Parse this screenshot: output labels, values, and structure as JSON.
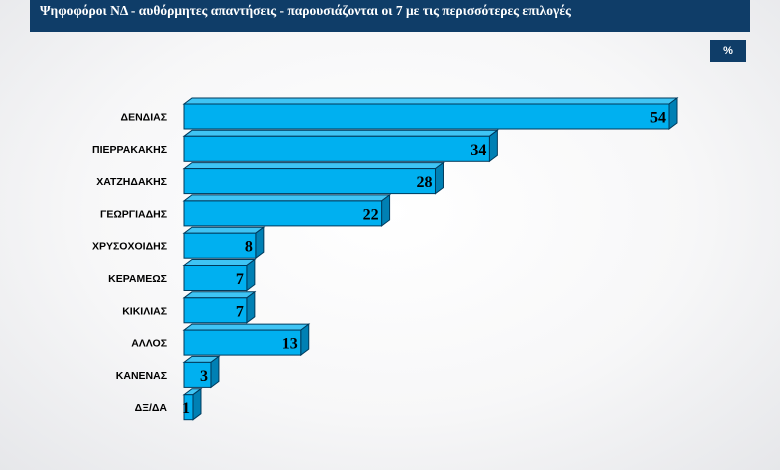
{
  "header": {
    "title": "Ψηφοφόροι ΝΔ - αυθόρμητες απαντήσεις - παρουσιάζονται οι 7 με τις περισσότερες επιλογές",
    "unit": "%"
  },
  "colors": {
    "header_bg": "#0f3d68",
    "bar_front": "#00b0f0",
    "bar_top": "#3fc4f4",
    "bar_side": "#0080b4",
    "bar_edge": "#003a5c"
  },
  "chart_data": {
    "type": "bar",
    "orientation": "horizontal",
    "title": "Ψηφοφόροι ΝΔ - αυθόρμητες απαντήσεις - παρουσιάζονται οι 7 με τις περισσότερες επιλογές",
    "unit": "%",
    "categories": [
      "ΔΕΝΔΙΑΣ",
      "ΠΙΕΡΡΑΚΑΚΗΣ",
      "ΧΑΤΖΗΔΑΚΗΣ",
      "ΓΕΩΡΓΙΑΔΗΣ",
      "ΧΡΥΣΟΧΟΙΔΗΣ",
      "ΚΕΡΑΜΕΩΣ",
      "ΚΙΚΙΛΙΑΣ",
      "ΑΛΛΟΣ",
      "ΚΑΝΕΝΑΣ",
      "ΔΞ/ΔΑ"
    ],
    "values": [
      54,
      34,
      28,
      22,
      8,
      7,
      7,
      13,
      3,
      1
    ],
    "xlim": [
      0,
      54
    ],
    "grid": false,
    "legend": "none",
    "data_labels": true
  }
}
